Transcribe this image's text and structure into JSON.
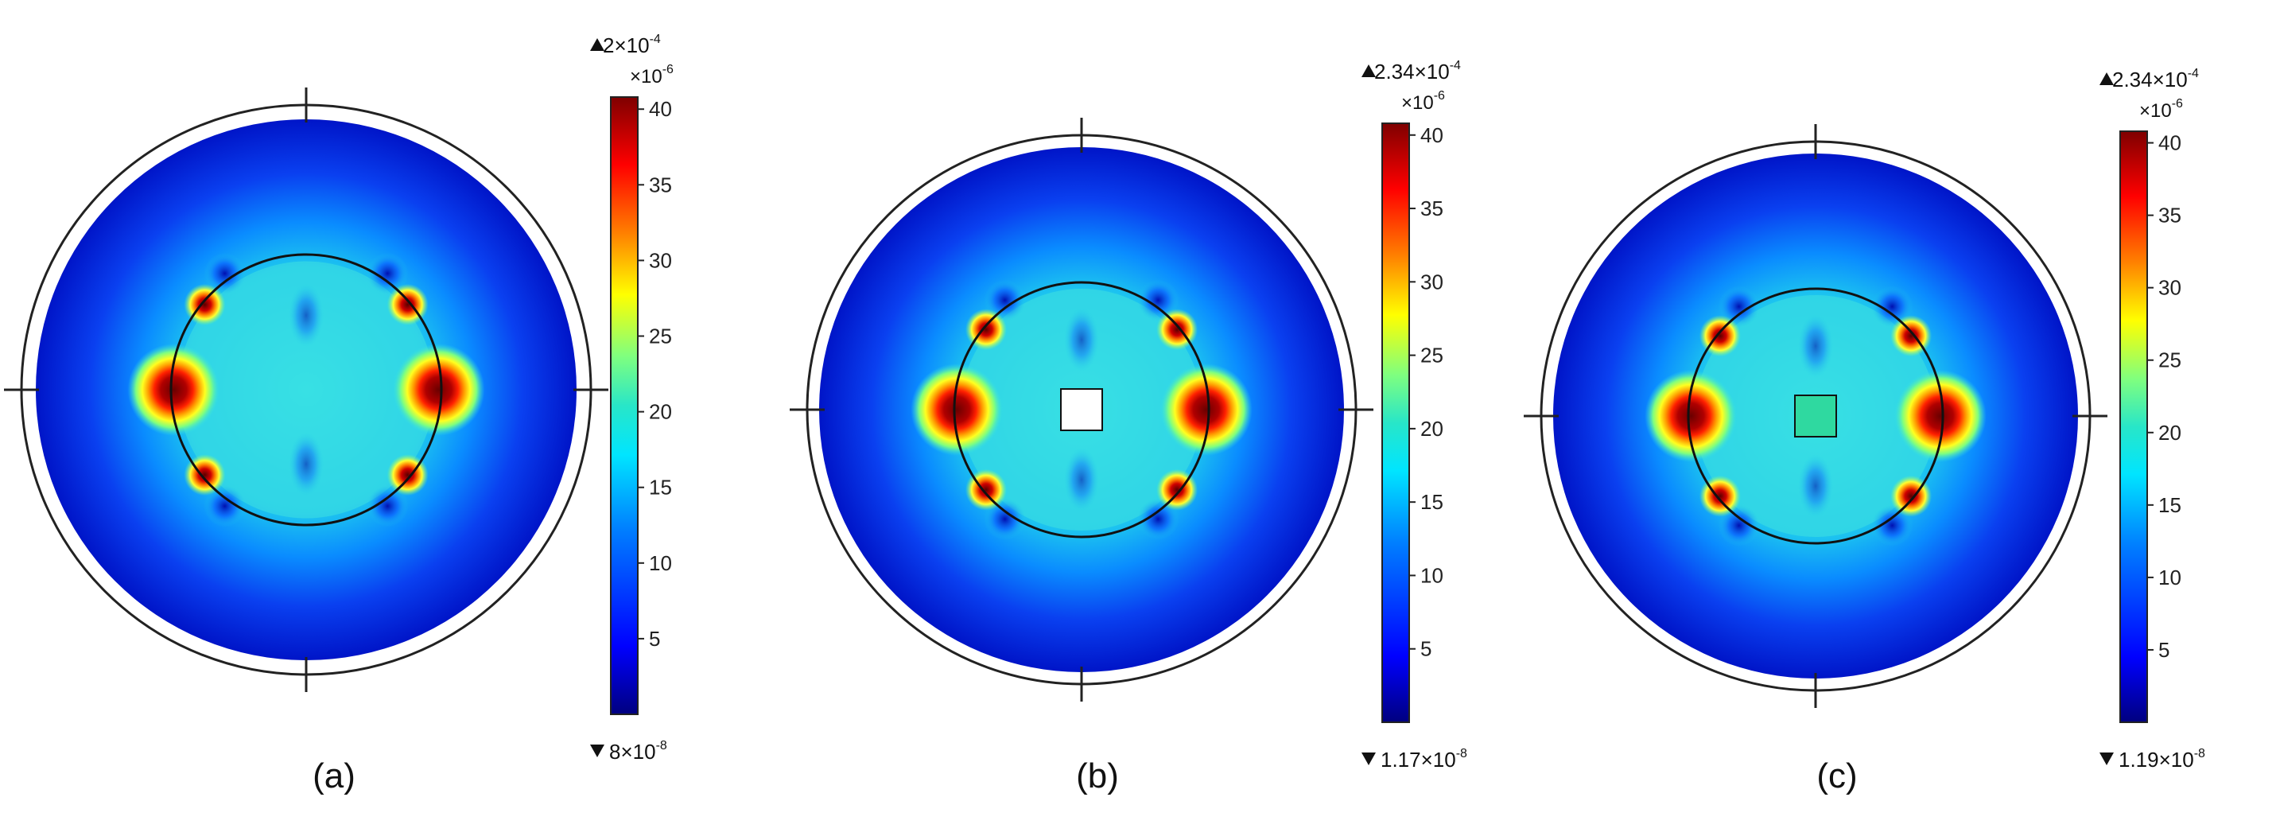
{
  "colors": {
    "background": "#ffffff",
    "outline": "#222222",
    "colormap": [
      "#00007f",
      "#0000ff",
      "#007fff",
      "#00e5ff",
      "#28e6c8",
      "#7fff7f",
      "#ffff00",
      "#ff7f00",
      "#ff0000",
      "#7f0000"
    ]
  },
  "panels": [
    {
      "caption": "(a)",
      "max_label": "2×10",
      "max_exp": "-4",
      "min_label": "8×10",
      "min_exp": "-8",
      "unit_label": "×10",
      "unit_exp": "-6",
      "scale_ticks": [
        "40",
        "35",
        "30",
        "25",
        "20",
        "15",
        "10",
        "5"
      ],
      "center_insert": "none",
      "center_insert_color": ""
    },
    {
      "caption": "(b)",
      "max_label": "2.34×10",
      "max_exp": "-4",
      "min_label": "1.17×10",
      "min_exp": "-8",
      "unit_label": "×10",
      "unit_exp": "-6",
      "scale_ticks": [
        "40",
        "35",
        "30",
        "25",
        "20",
        "15",
        "10",
        "5"
      ],
      "center_insert": "hole",
      "center_insert_color": "#ffffff"
    },
    {
      "caption": "(c)",
      "max_label": "2.34×10",
      "max_exp": "-4",
      "min_label": "1.19×10",
      "min_exp": "-8",
      "unit_label": "×10",
      "unit_exp": "-6",
      "scale_ticks": [
        "40",
        "35",
        "30",
        "25",
        "20",
        "15",
        "10",
        "5"
      ],
      "center_insert": "filled",
      "center_insert_color": "#2fd9a0"
    }
  ]
}
